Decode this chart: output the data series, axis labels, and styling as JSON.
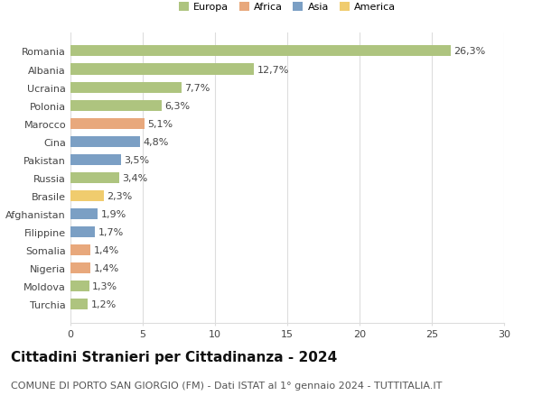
{
  "countries": [
    "Romania",
    "Albania",
    "Ucraina",
    "Polonia",
    "Marocco",
    "Cina",
    "Pakistan",
    "Russia",
    "Brasile",
    "Afghanistan",
    "Filippine",
    "Somalia",
    "Nigeria",
    "Moldova",
    "Turchia"
  ],
  "values": [
    26.3,
    12.7,
    7.7,
    6.3,
    5.1,
    4.8,
    3.5,
    3.4,
    2.3,
    1.9,
    1.7,
    1.4,
    1.4,
    1.3,
    1.2
  ],
  "labels": [
    "26,3%",
    "12,7%",
    "7,7%",
    "6,3%",
    "5,1%",
    "4,8%",
    "3,5%",
    "3,4%",
    "2,3%",
    "1,9%",
    "1,7%",
    "1,4%",
    "1,4%",
    "1,3%",
    "1,2%"
  ],
  "colors": [
    "#aec47f",
    "#aec47f",
    "#aec47f",
    "#aec47f",
    "#e8a87c",
    "#7b9fc4",
    "#7b9fc4",
    "#aec47f",
    "#f0cc6e",
    "#7b9fc4",
    "#7b9fc4",
    "#e8a87c",
    "#e8a87c",
    "#aec47f",
    "#aec47f"
  ],
  "legend_labels": [
    "Europa",
    "Africa",
    "Asia",
    "America"
  ],
  "legend_colors": [
    "#aec47f",
    "#e8a87c",
    "#7b9fc4",
    "#f0cc6e"
  ],
  "xlim": [
    0,
    30
  ],
  "xticks": [
    0,
    5,
    10,
    15,
    20,
    25,
    30
  ],
  "title": "Cittadini Stranieri per Cittadinanza - 2024",
  "subtitle": "COMUNE DI PORTO SAN GIORGIO (FM) - Dati ISTAT al 1° gennaio 2024 - TUTTITALIA.IT",
  "title_fontsize": 11,
  "subtitle_fontsize": 8,
  "label_fontsize": 8,
  "tick_fontsize": 8,
  "bar_height": 0.6,
  "background_color": "#ffffff",
  "grid_color": "#dddddd"
}
